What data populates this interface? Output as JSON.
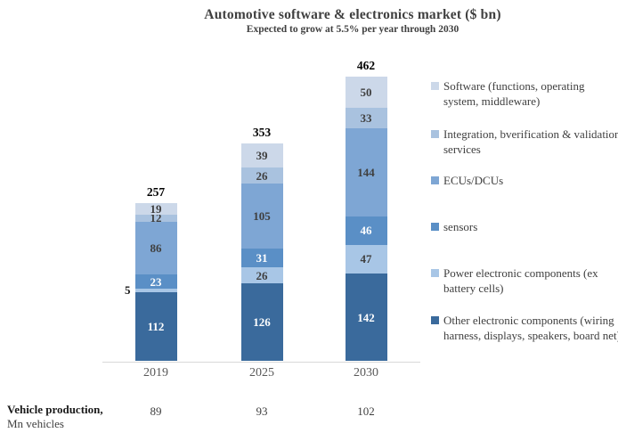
{
  "chart_data": {
    "type": "stacked-bar",
    "title": "Automotive software & electronics market ($ bn)",
    "subtitle": "Expected to grow at 5.5% per year through 2030",
    "categories": [
      "2019",
      "2025",
      "2030"
    ],
    "totals": [
      257,
      353,
      462
    ],
    "ylim": [
      0,
      500
    ],
    "grid": false,
    "legend_position": "right",
    "series": [
      {
        "name": "Other electronic components (wiring harness, displays, speakers, board net)",
        "color": "#3a6a9c",
        "label_color": "#ffffff",
        "values": [
          112,
          126,
          142
        ]
      },
      {
        "name": "Power electronic components (ex battery cells)",
        "color": "#a8c6e6",
        "label_color": "#3f3f3f",
        "values": [
          5,
          26,
          47
        ]
      },
      {
        "name": "sensors",
        "color": "#5a8fc6",
        "label_color": "#ffffff",
        "values": [
          23,
          31,
          46
        ]
      },
      {
        "name": "ECUs/DCUs",
        "color": "#7ea6d4",
        "label_color": "#3f3f3f",
        "values": [
          86,
          105,
          144
        ]
      },
      {
        "name": "Integration, bverification & validation services",
        "color": "#a9c2df",
        "label_color": "#3f3f3f",
        "values": [
          12,
          26,
          33
        ]
      },
      {
        "name": "Software (functions, operating system, middleware)",
        "color": "#ccd8e9",
        "label_color": "#3f3f3f",
        "values": [
          19,
          39,
          50
        ]
      }
    ],
    "axis_line_color": "#d9d9d9",
    "footer": {
      "label_line1": "Vehicle production,",
      "label_line2": "Mn vehicles",
      "values": [
        89,
        93,
        102
      ]
    }
  }
}
